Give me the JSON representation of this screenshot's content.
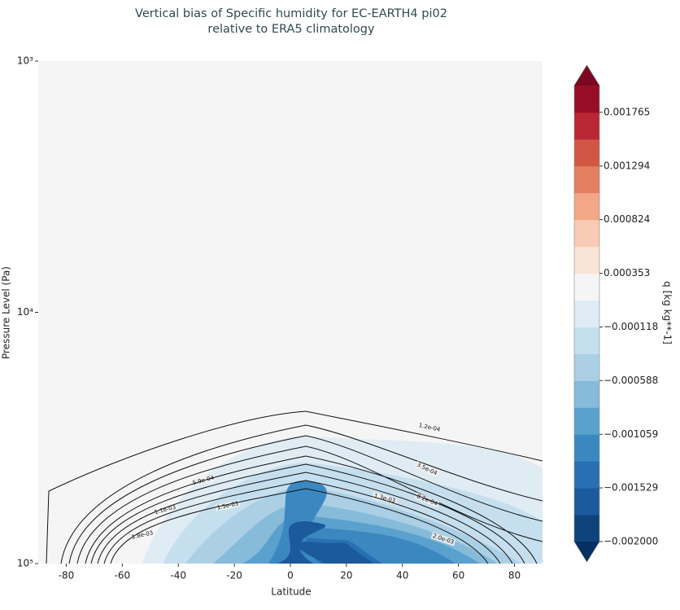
{
  "chart_data": {
    "type": "contour",
    "title": "Vertical bias of Specific humidity for EC-EARTH4 pi02",
    "subtitle": "relative to ERA5 climatology",
    "x_label": "Latitude",
    "y_label": "Pressure Level (Pa)",
    "xlim": [
      -90,
      90
    ],
    "xticks": [
      -80,
      -60,
      -40,
      -20,
      0,
      20,
      40,
      60,
      80
    ],
    "ylim": [
      100000,
      1000
    ],
    "y_log": true,
    "yticks": [
      {
        "value": 1000,
        "label": "10³"
      },
      {
        "value": 10000,
        "label": "10⁴"
      },
      {
        "value": 100000,
        "label": "10⁵"
      }
    ],
    "background": "#f5f5f5",
    "contours": [
      {
        "value": 0.00012,
        "label": "1.2e-04"
      },
      {
        "value": 0.00035,
        "label": "3.5e-04"
      },
      {
        "value": 0.00059,
        "label": "5.9e-04"
      },
      {
        "value": 0.00082,
        "label": "8.2e-04"
      },
      {
        "value": 0.0011,
        "label": "1.1e-03"
      },
      {
        "value": 0.0013,
        "label": "1.3e-03"
      },
      {
        "value": 0.0015,
        "label": "1.5e-03"
      },
      {
        "value": 0.0018,
        "label": "1.8e-03"
      },
      {
        "value": 0.002,
        "label": "2.0e-03"
      }
    ],
    "colorbar": {
      "label": "q [kg kg**-1]",
      "clim": [
        -0.002,
        0.002
      ],
      "levels": [
        -0.002,
        -0.0017647,
        -0.0015294,
        -0.0012941,
        -0.0010588,
        -0.0008235,
        -0.0005882,
        -0.0003529,
        -0.0001176,
        0.0001176,
        0.0003529,
        0.0005882,
        0.0008235,
        0.0010588,
        0.0012941,
        0.0015294,
        0.0017647,
        0.002
      ],
      "colors": [
        "#0f437b",
        "#1b5a9c",
        "#2870b1",
        "#3b88c0",
        "#5ba1cd",
        "#86bbd9",
        "#abd0e6",
        "#c6dfee",
        "#e0ecf4",
        "#f5f5f5",
        "#fae3d7",
        "#f9cbb4",
        "#f2a787",
        "#e3805f",
        "#d15744",
        "#b92734",
        "#960e27"
      ],
      "extend_colors": [
        "#053061",
        "#7a0822"
      ],
      "ticks": [
        {
          "value": -0.002,
          "label": "−0.002000"
        },
        {
          "value": -0.001529,
          "label": "−0.001529"
        },
        {
          "value": -0.001059,
          "label": "−0.001059"
        },
        {
          "value": -0.000588,
          "label": "−0.000588"
        },
        {
          "value": -0.000118,
          "label": "−0.000118"
        },
        0.000353,
        0.000824,
        0.001294,
        0.001765
      ]
    }
  }
}
